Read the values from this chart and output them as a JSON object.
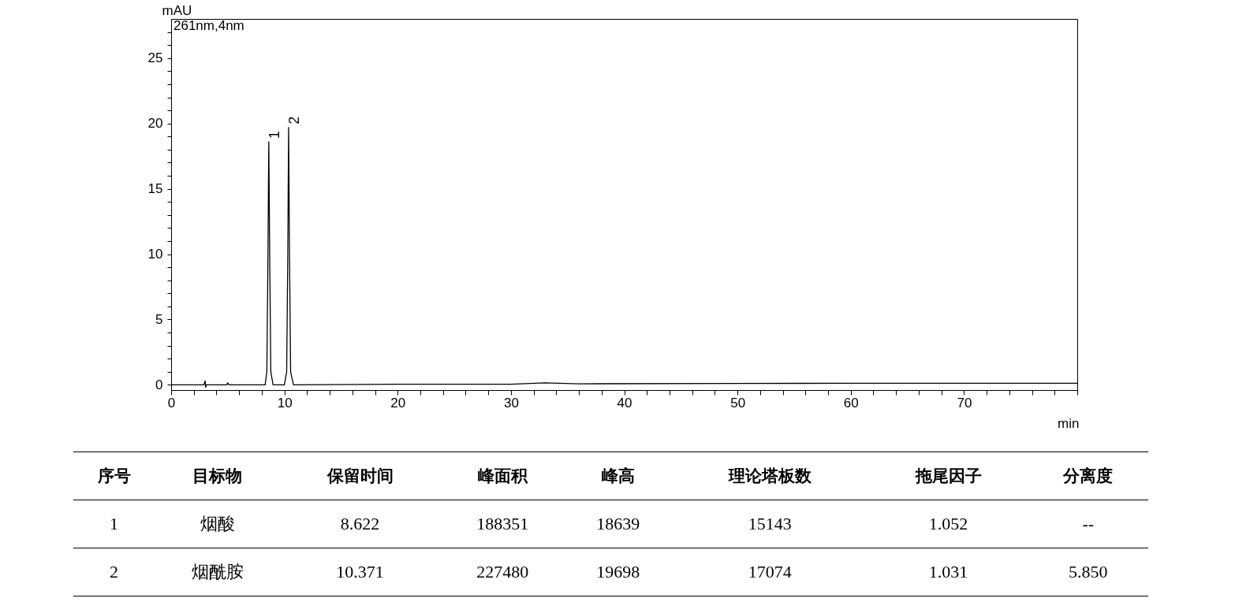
{
  "chart_data": [
    {
      "type": "line",
      "xlabel": "min",
      "ylabel": "mAU",
      "x": [
        0,
        2.9,
        3.0,
        3.05,
        3.1,
        4.9,
        5.0,
        5.1,
        8.3,
        8.45,
        8.55,
        8.622,
        8.7,
        8.8,
        9.0,
        10.0,
        10.2,
        10.3,
        10.371,
        10.45,
        10.55,
        10.8,
        20,
        30,
        33,
        36,
        50,
        60,
        80
      ],
      "series": [
        {
          "color": "#000000",
          "values": [
            0,
            0,
            0.3,
            -0.2,
            0,
            0,
            0.15,
            0,
            0,
            1,
            10,
            18.6,
            10,
            1,
            0,
            0,
            1,
            10,
            19.7,
            10,
            1,
            0,
            0.05,
            0.05,
            0.15,
            0.08,
            0.1,
            0.12,
            0.12
          ]
        }
      ],
      "xlim": [
        0,
        80
      ],
      "ylim": [
        -0.4,
        28
      ],
      "xticks": [
        0,
        {
          "value": 2,
          "label": null
        },
        {
          "value": 4,
          "label": null
        },
        {
          "value": 6,
          "label": null
        },
        {
          "value": 8,
          "label": null
        },
        10,
        {
          "value": 12,
          "label": null
        },
        {
          "value": 14,
          "label": null
        },
        {
          "value": 16,
          "label": null
        },
        {
          "value": 18,
          "label": null
        },
        20,
        {
          "value": 22,
          "label": null
        },
        {
          "value": 24,
          "label": null
        },
        {
          "value": 26,
          "label": null
        },
        {
          "value": 28,
          "label": null
        },
        30,
        {
          "value": 32,
          "label": null
        },
        {
          "value": 34,
          "label": null
        },
        {
          "value": 36,
          "label": null
        },
        {
          "value": 38,
          "label": null
        },
        40,
        {
          "value": 42,
          "label": null
        },
        {
          "value": 44,
          "label": null
        },
        {
          "value": 46,
          "label": null
        },
        {
          "value": 48,
          "label": null
        },
        50,
        {
          "value": 52,
          "label": null
        },
        {
          "value": 54,
          "label": null
        },
        {
          "value": 56,
          "label": null
        },
        {
          "value": 58,
          "label": null
        },
        60,
        {
          "value": 62,
          "label": null
        },
        {
          "value": 64,
          "label": null
        },
        {
          "value": 66,
          "label": null
        },
        {
          "value": 68,
          "label": null
        },
        70,
        {
          "value": 72,
          "label": null
        },
        {
          "value": 74,
          "label": null
        },
        {
          "value": 76,
          "label": null
        },
        {
          "value": 78,
          "label": null
        },
        {
          "value": 80,
          "label": null
        }
      ],
      "yticks": [
        0,
        {
          "value": 1,
          "label": null
        },
        {
          "value": 2,
          "label": null
        },
        {
          "value": 3,
          "label": null
        },
        {
          "value": 4,
          "label": null
        },
        5,
        {
          "value": 6,
          "label": null
        },
        {
          "value": 7,
          "label": null
        },
        {
          "value": 8,
          "label": null
        },
        {
          "value": 9,
          "label": null
        },
        10,
        {
          "value": 11,
          "label": null
        },
        {
          "value": 12,
          "label": null
        },
        {
          "value": 13,
          "label": null
        },
        {
          "value": 14,
          "label": null
        },
        15,
        {
          "value": 16,
          "label": null
        },
        {
          "value": 17,
          "label": null
        },
        {
          "value": 18,
          "label": null
        },
        {
          "value": 19,
          "label": null
        },
        20,
        {
          "value": 21,
          "label": null
        },
        {
          "value": 22,
          "label": null
        },
        {
          "value": 23,
          "label": null
        },
        {
          "value": 24,
          "label": null
        },
        25,
        {
          "value": 26,
          "label": null
        },
        {
          "value": 27,
          "label": null
        }
      ],
      "annotations": [
        "261nm,4nm",
        {
          "text": "1",
          "x": 8.622,
          "y": 18.6
        },
        {
          "text": "2",
          "x": 10.371,
          "y": 19.7
        }
      ],
      "grid": false,
      "legend": false
    },
    {
      "type": "other",
      "categories": [
        "序号",
        "目标物",
        "保留时间",
        "峰面积",
        "峰高",
        "理论塔板数",
        "拖尾因子",
        "分离度"
      ],
      "cells": [
        [
          "1",
          "烟酸",
          "8.622",
          "188351",
          "18639",
          "15143",
          "1.052",
          "--"
        ],
        [
          "2",
          "烟酰胺",
          "10.371",
          "227480",
          "19698",
          "17074",
          "1.031",
          "5.850"
        ]
      ]
    }
  ]
}
